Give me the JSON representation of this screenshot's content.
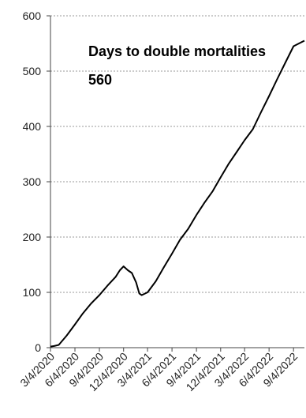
{
  "chart_data": {
    "type": "line",
    "x_type": "date",
    "annotation": {
      "title": "Days to double mortalities",
      "value": "560"
    },
    "ylim": [
      0,
      600
    ],
    "yticks": [
      0,
      100,
      200,
      300,
      400,
      500,
      600
    ],
    "xlim": [
      "2020-03-04",
      "2022-10-15"
    ],
    "xticks": [
      {
        "date": "2020-03-04",
        "label": "3/4/2020"
      },
      {
        "date": "2020-06-04",
        "label": "6/4/2020"
      },
      {
        "date": "2020-09-04",
        "label": "9/4/2020"
      },
      {
        "date": "2020-12-04",
        "label": "12/4/2020"
      },
      {
        "date": "2021-03-04",
        "label": "3/4/2021"
      },
      {
        "date": "2021-06-04",
        "label": "6/4/2021"
      },
      {
        "date": "2021-09-04",
        "label": "9/4/2021"
      },
      {
        "date": "2021-12-04",
        "label": "12/4/2021"
      },
      {
        "date": "2022-03-04",
        "label": "3/4/2022"
      },
      {
        "date": "2022-06-04",
        "label": "6/4/2022"
      },
      {
        "date": "2022-09-04",
        "label": "9/4/2022"
      }
    ],
    "grid": {
      "y": true,
      "x": false
    },
    "line_color": "#000000",
    "series": [
      {
        "x": [
          "2020-03-04",
          "2020-03-18",
          "2020-04-04",
          "2020-05-04",
          "2020-06-04",
          "2020-07-04",
          "2020-08-04",
          "2020-09-04",
          "2020-10-04",
          "2020-11-04",
          "2020-11-20",
          "2020-12-04",
          "2020-12-20",
          "2021-01-04",
          "2021-01-20",
          "2021-02-01",
          "2021-02-10",
          "2021-03-04",
          "2021-04-04",
          "2021-05-04",
          "2021-06-04",
          "2021-07-04",
          "2021-08-04",
          "2021-09-04",
          "2021-10-04",
          "2021-11-04",
          "2021-12-04",
          "2022-01-04",
          "2022-02-04",
          "2022-03-04",
          "2022-04-04",
          "2022-05-04",
          "2022-06-04",
          "2022-07-04",
          "2022-08-04",
          "2022-09-04",
          "2022-10-15"
        ],
        "y": [
          2,
          3,
          5,
          22,
          42,
          62,
          80,
          95,
          112,
          128,
          140,
          147,
          140,
          135,
          118,
          98,
          95,
          100,
          120,
          145,
          170,
          195,
          215,
          240,
          262,
          283,
          308,
          333,
          355,
          375,
          395,
          425,
          455,
          485,
          515,
          545,
          555
        ]
      }
    ]
  }
}
